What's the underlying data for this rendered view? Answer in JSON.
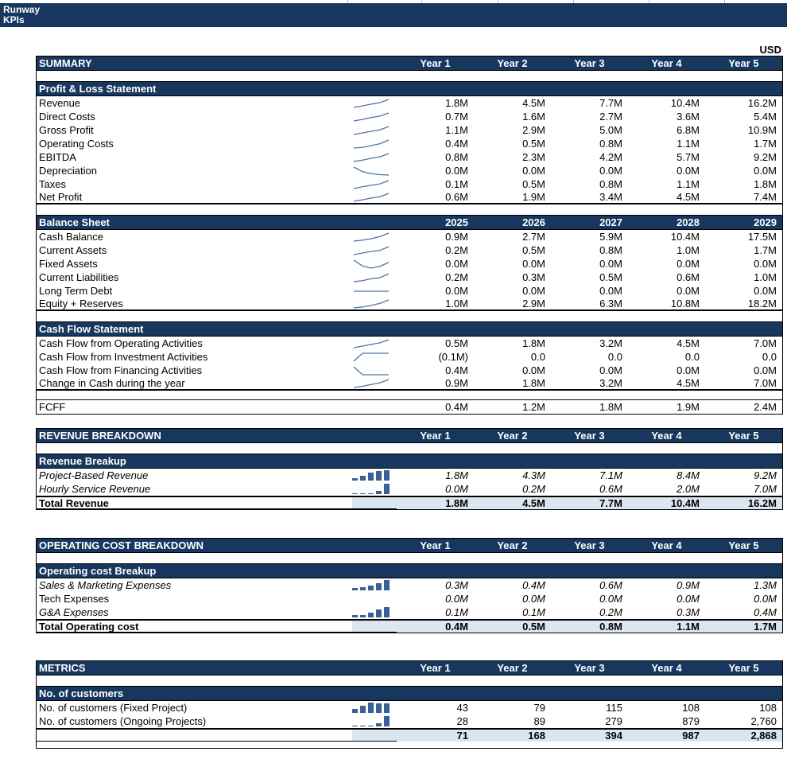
{
  "app": {
    "title_lines": [
      "Runway",
      "KPIs"
    ],
    "currency": "USD"
  },
  "colors": {
    "navy": "#17375E",
    "total_bg": "#DCE6F1",
    "spark_line": "#4F74A3",
    "spark_bar": "#3A6195"
  },
  "sections": [
    {
      "id": "summary",
      "title": "SUMMARY",
      "col_headers": [
        "Year 1",
        "Year 2",
        "Year 3",
        "Year 4",
        "Year 5"
      ],
      "blocks": [
        {
          "title": "Profit & Loss Statement",
          "rows": [
            {
              "label": "Revenue",
              "values": [
                "1.8M",
                "4.5M",
                "7.7M",
                "10.4M",
                "16.2M"
              ],
              "spark": "line",
              "spark_data": [
                1.8,
                4.5,
                7.7,
                10.4,
                16.2
              ]
            },
            {
              "label": "Direct Costs",
              "values": [
                "0.7M",
                "1.6M",
                "2.7M",
                "3.6M",
                "5.4M"
              ],
              "spark": "line",
              "spark_data": [
                0.7,
                1.6,
                2.7,
                3.6,
                5.4
              ]
            },
            {
              "label": "Gross Profit",
              "values": [
                "1.1M",
                "2.9M",
                "5.0M",
                "6.8M",
                "10.9M"
              ],
              "spark": "line",
              "spark_data": [
                1.1,
                2.9,
                5.0,
                6.8,
                10.9
              ]
            },
            {
              "label": "Operating Costs",
              "values": [
                "0.4M",
                "0.5M",
                "0.8M",
                "1.1M",
                "1.7M"
              ],
              "spark": "line",
              "spark_data": [
                0.4,
                0.5,
                0.8,
                1.1,
                1.7
              ]
            },
            {
              "label": "EBITDA",
              "values": [
                "0.8M",
                "2.3M",
                "4.2M",
                "5.7M",
                "9.2M"
              ],
              "spark": "line",
              "spark_data": [
                0.8,
                2.3,
                4.2,
                5.7,
                9.2
              ]
            },
            {
              "label": "Depreciation",
              "values": [
                "0.0M",
                "0.0M",
                "0.0M",
                "0.0M",
                "0.0M"
              ],
              "spark": "line",
              "spark_data": [
                1,
                0.45,
                0.2,
                0.08,
                0.03
              ]
            },
            {
              "label": "Taxes",
              "values": [
                "0.1M",
                "0.5M",
                "0.8M",
                "1.1M",
                "1.8M"
              ],
              "spark": "line",
              "spark_data": [
                0.1,
                0.5,
                0.8,
                1.1,
                1.8
              ]
            },
            {
              "label": "Net Profit",
              "values": [
                "0.6M",
                "1.9M",
                "3.4M",
                "4.5M",
                "7.4M"
              ],
              "spark": "line",
              "spark_data": [
                0.6,
                1.9,
                3.4,
                4.5,
                7.4
              ]
            }
          ]
        },
        {
          "title": "Balance Sheet",
          "header_values": [
            "2025",
            "2026",
            "2027",
            "2028",
            "2029"
          ],
          "rows": [
            {
              "label": "Cash Balance",
              "values": [
                "0.9M",
                "2.7M",
                "5.9M",
                "10.4M",
                "17.5M"
              ],
              "spark": "line",
              "spark_data": [
                0.9,
                2.7,
                5.9,
                10.4,
                17.5
              ]
            },
            {
              "label": "Current Assets",
              "values": [
                "0.2M",
                "0.5M",
                "0.8M",
                "1.0M",
                "1.7M"
              ],
              "spark": "line",
              "spark_data": [
                0.2,
                0.5,
                0.8,
                1.0,
                1.7
              ]
            },
            {
              "label": "Fixed Assets",
              "values": [
                "0.0M",
                "0.0M",
                "0.0M",
                "0.0M",
                "0.0M"
              ],
              "spark": "line",
              "spark_data": [
                1,
                0.35,
                0.1,
                0.3,
                0.75
              ]
            },
            {
              "label": "Current Liabilities",
              "values": [
                "0.2M",
                "0.3M",
                "0.5M",
                "0.6M",
                "1.0M"
              ],
              "spark": "line",
              "spark_data": [
                0.2,
                0.3,
                0.5,
                0.6,
                1.0
              ]
            },
            {
              "label": "Long Term Debt",
              "values": [
                "0.0M",
                "0.0M",
                "0.0M",
                "0.0M",
                "0.0M"
              ],
              "spark": "line",
              "spark_data": [
                0,
                0,
                0,
                0,
                0
              ]
            },
            {
              "label": "Equity + Reserves",
              "values": [
                "1.0M",
                "2.9M",
                "6.3M",
                "10.8M",
                "18.2M"
              ],
              "spark": "line",
              "spark_data": [
                1.0,
                2.9,
                6.3,
                10.8,
                18.2
              ]
            }
          ]
        },
        {
          "title": "Cash Flow Statement",
          "rows": [
            {
              "label": "Cash Flow from Operating Activities",
              "values": [
                "0.5M",
                "1.8M",
                "3.2M",
                "4.5M",
                "7.0M"
              ],
              "spark": "line",
              "spark_data": [
                0.5,
                1.8,
                3.2,
                4.5,
                7.0
              ]
            },
            {
              "label": "Cash Flow from Investment Activities",
              "values": [
                "(0.1M)",
                "0.0",
                "0.0",
                "0.0",
                "0.0"
              ],
              "spark": "line",
              "spark_data": [
                -0.1,
                0,
                0,
                0,
                0
              ]
            },
            {
              "label": "Cash Flow from Financing Activities",
              "values": [
                "0.4M",
                "0.0M",
                "0.0M",
                "0.0M",
                "0.0M"
              ],
              "spark": "line",
              "spark_data": [
                0.4,
                0,
                0,
                0,
                0
              ]
            },
            {
              "label": "Change in Cash during the year",
              "values": [
                "0.9M",
                "1.8M",
                "3.2M",
                "4.5M",
                "7.0M"
              ],
              "spark": "line",
              "spark_data": [
                0.9,
                1.8,
                3.2,
                4.5,
                7.0
              ]
            }
          ]
        }
      ],
      "footer_row": {
        "label": "FCFF",
        "values": [
          "0.4M",
          "1.2M",
          "1.8M",
          "1.9M",
          "2.4M"
        ]
      }
    },
    {
      "id": "revenue",
      "title": "REVENUE BREAKDOWN",
      "col_headers": [
        "Year 1",
        "Year 2",
        "Year 3",
        "Year 4",
        "Year 5"
      ],
      "blocks": [
        {
          "title": "Revenue Breakup",
          "rows": [
            {
              "label": "Project-Based Revenue",
              "italic": "both",
              "values": [
                "1.8M",
                "4.3M",
                "7.1M",
                "8.4M",
                "9.2M"
              ],
              "spark": "bar",
              "spark_data": [
                1.8,
                4.3,
                7.1,
                8.4,
                9.2
              ]
            },
            {
              "label": "Hourly Service Revenue",
              "italic": "both",
              "values": [
                "0.0M",
                "0.2M",
                "0.6M",
                "2.0M",
                "7.0M"
              ],
              "spark": "bar",
              "spark_data": [
                0.05,
                0.2,
                0.6,
                2.0,
                7.0
              ]
            }
          ],
          "total": {
            "label": "Total Revenue",
            "values": [
              "1.8M",
              "4.5M",
              "7.7M",
              "10.4M",
              "16.2M"
            ]
          }
        }
      ]
    },
    {
      "id": "opcost",
      "title": "OPERATING COST BREAKDOWN",
      "col_headers": [
        "Year 1",
        "Year 2",
        "Year 3",
        "Year 4",
        "Year 5"
      ],
      "blocks": [
        {
          "title": "Operating cost Breakup",
          "rows": [
            {
              "label": "Sales & Marketing Expenses",
              "italic": "both",
              "values": [
                "0.3M",
                "0.4M",
                "0.6M",
                "0.9M",
                "1.3M"
              ],
              "spark": "bar",
              "spark_data": [
                0.3,
                0.4,
                0.6,
                0.9,
                1.3
              ]
            },
            {
              "label": "Tech Expenses",
              "italic": "values",
              "values": [
                "0.0M",
                "0.0M",
                "0.0M",
                "0.0M",
                "0.0M"
              ],
              "spark": "none",
              "spark_data": []
            },
            {
              "label": "G&A Expenses",
              "italic": "both",
              "values": [
                "0.1M",
                "0.1M",
                "0.2M",
                "0.3M",
                "0.4M"
              ],
              "spark": "bar",
              "spark_data": [
                0.1,
                0.1,
                0.2,
                0.3,
                0.4
              ]
            }
          ],
          "total": {
            "label": "Total Operating cost",
            "values": [
              "0.4M",
              "0.5M",
              "0.8M",
              "1.1M",
              "1.7M"
            ]
          }
        }
      ]
    },
    {
      "id": "metrics",
      "title": "METRICS",
      "col_headers": [
        "Year 1",
        "Year 2",
        "Year 3",
        "Year 4",
        "Year 5"
      ],
      "blocks": [
        {
          "title": "No. of customers",
          "rows": [
            {
              "label": "No. of customers (Fixed Project)",
              "values": [
                "43",
                "79",
                "115",
                "108",
                "108"
              ],
              "spark": "bar",
              "spark_data": [
                43,
                79,
                115,
                108,
                108
              ]
            },
            {
              "label": "No. of customers (Ongoing Projects)",
              "values": [
                "28",
                "89",
                "279",
                "879",
                "2,760"
              ],
              "spark": "bar",
              "spark_data": [
                28,
                89,
                279,
                879,
                2760
              ]
            }
          ],
          "total": {
            "label": "",
            "values": [
              "71",
              "168",
              "394",
              "987",
              "2,868"
            ],
            "full_blue": true
          },
          "bottom_strip": true
        }
      ]
    }
  ]
}
